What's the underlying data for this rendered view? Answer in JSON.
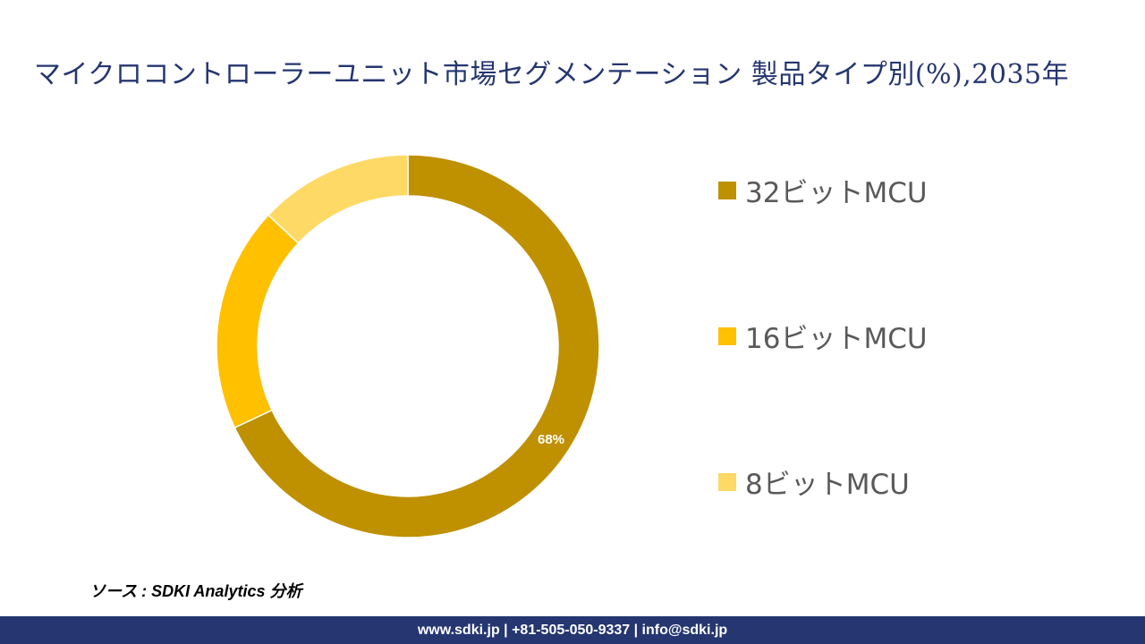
{
  "title": "マイクロコントローラーユニット市場セグメンテーション 製品タイプ別(%),2035年",
  "chart_data": {
    "type": "pie",
    "subtype": "donut",
    "title": "マイクロコントローラーユニット市場セグメンテーション 製品タイプ別(%),2035年",
    "categories": [
      "32ビットMCU",
      "16ビットMCU",
      "8ビットMCU"
    ],
    "values": [
      68,
      19,
      13
    ],
    "value_unit": "%",
    "data_labels": [
      "68%",
      "",
      ""
    ],
    "colors": [
      "#BF9000",
      "#FFC000",
      "#FFD966"
    ],
    "start_angle_deg": 0,
    "direction": "clockwise",
    "legend_position": "right"
  },
  "legend": {
    "items": [
      {
        "label": "32ビットMCU",
        "color": "#BF9000"
      },
      {
        "label": "16ビットMCU",
        "color": "#FFC000"
      },
      {
        "label": "8ビットMCU",
        "color": "#FFD966"
      }
    ]
  },
  "source": "ソース : SDKI Analytics 分析",
  "footer": {
    "text": "www.sdki.jp | +81-505-050-9337 | info@sdki.jp",
    "background": "#253670"
  }
}
